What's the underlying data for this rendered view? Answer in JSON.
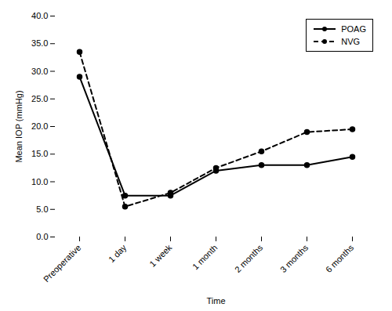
{
  "chart_data": {
    "type": "line",
    "xlabel": "Time",
    "ylabel": "Mean IOP (mmHg)",
    "categories": [
      "Preoperative",
      "1 day",
      "1 week",
      "1 month",
      "2 months",
      "3 months",
      "6 months"
    ],
    "series": [
      {
        "name": "POAG",
        "color": "#000000",
        "line_style": "solid",
        "marker": "circle",
        "values": [
          29.0,
          7.5,
          7.5,
          12.0,
          13.0,
          13.0,
          14.5
        ]
      },
      {
        "name": "NVG",
        "color": "#000000",
        "line_style": "dashed",
        "marker": "circle",
        "values": [
          33.5,
          5.5,
          8.0,
          12.5,
          15.5,
          19.0,
          19.5
        ]
      }
    ],
    "ylim": [
      0.0,
      40.0
    ],
    "yticks": [
      {
        "value": 0,
        "label": "0.0"
      },
      {
        "value": 5,
        "label": "5.0"
      },
      {
        "value": 10,
        "label": "10.0"
      },
      {
        "value": 15,
        "label": "15.0"
      },
      {
        "value": 20,
        "label": "20.0"
      },
      {
        "value": 25,
        "label": "25.0"
      },
      {
        "value": 30,
        "label": "30.0"
      },
      {
        "value": 35,
        "label": "35.0"
      },
      {
        "value": 40,
        "label": "40.0"
      }
    ],
    "grid": false,
    "legend": "upper right"
  }
}
